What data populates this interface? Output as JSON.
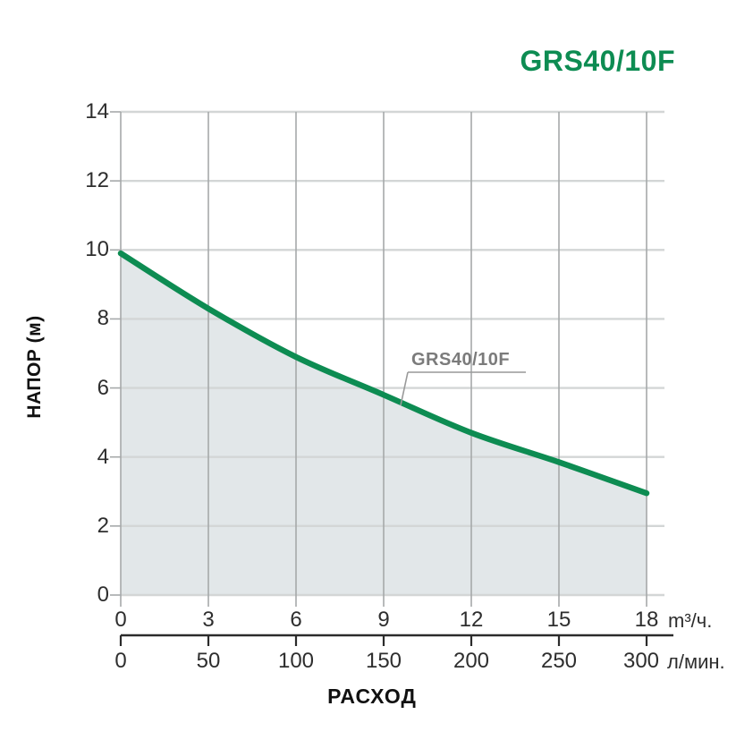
{
  "chart_data": {
    "type": "line",
    "title": "GRS40/10F",
    "x_range": [
      0,
      18
    ],
    "xlabel": "РАСХОД",
    "series": [
      {
        "name": "GRS40/10F",
        "x": [
          0,
          3,
          6,
          9,
          12,
          15,
          18
        ],
        "y": [
          9.9,
          8.3,
          6.9,
          5.8,
          4.7,
          3.85,
          2.95
        ],
        "color": "#0d8c52",
        "fill": "#e2e7e9"
      }
    ],
    "y_axis": {
      "label": "НАПОР (м)",
      "range": [
        0,
        14
      ],
      "ticks": [
        14,
        12,
        10,
        8,
        6,
        4,
        2,
        0
      ]
    },
    "x_axis_primary": {
      "ticks": [
        0,
        3,
        6,
        9,
        12,
        15,
        18
      ],
      "unit": "m³/ч."
    },
    "x_axis_secondary": {
      "ticks": [
        0,
        50,
        100,
        150,
        200,
        250,
        300
      ],
      "unit": "л/мин."
    },
    "annotation": {
      "text": "GRS40/10F",
      "color": "#7b7b7b"
    },
    "grid": true,
    "legend": "none",
    "colors": {
      "title": "#0d8c52",
      "curve": "#0d8c52",
      "area_fill": "#e2e7e9",
      "grid_horizontal": "#d3d6d6",
      "grid_vertical": "#a6a9aa",
      "tick_text": "#2e2e2e",
      "secondary_axis": "#2b2b2b",
      "leader_line": "#999999"
    }
  }
}
